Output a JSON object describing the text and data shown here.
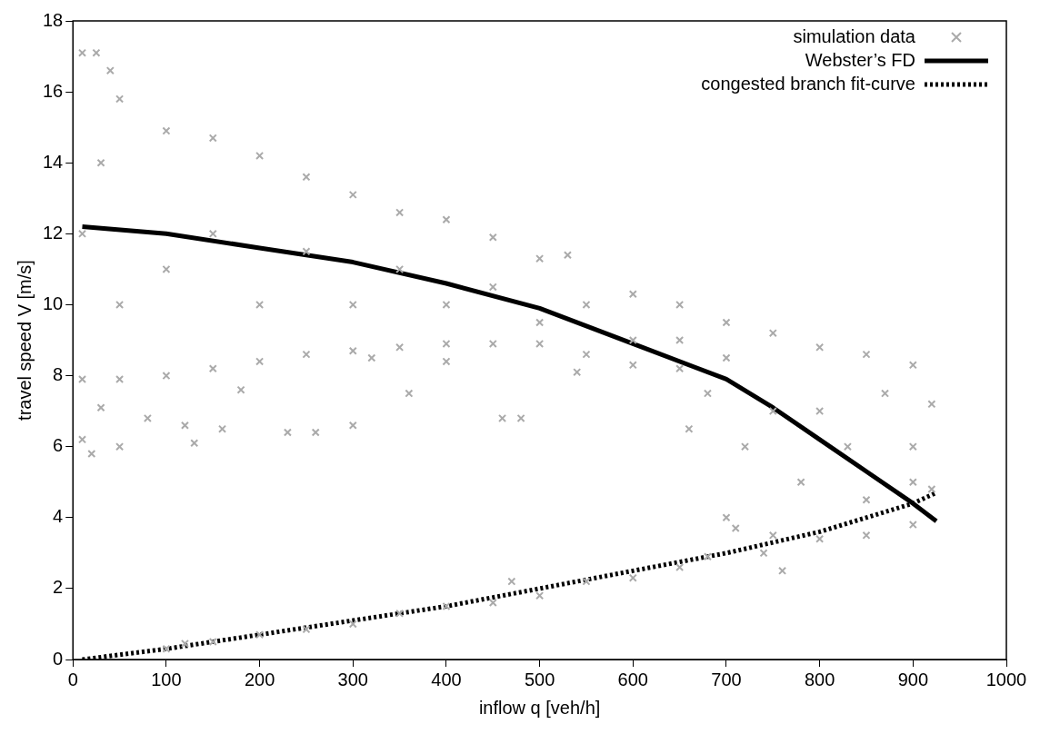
{
  "chart_data": {
    "type": "scatter",
    "xlabel": "inflow q [veh/h]",
    "ylabel": "travel speed V [m/s]",
    "xlim": [
      0,
      1000
    ],
    "xticks": [
      0,
      100,
      200,
      300,
      400,
      500,
      600,
      700,
      800,
      900,
      1000
    ],
    "ylim": [
      0,
      18
    ],
    "yticks": [
      0,
      2,
      4,
      6,
      8,
      10,
      12,
      14,
      16,
      18
    ],
    "grid": false,
    "legend": "top right",
    "series": [
      {
        "name": "simulation data",
        "type": "scatter",
        "marker": "cross",
        "color": "#aaaaaa",
        "x": [
          10,
          25,
          40,
          50,
          100,
          150,
          200,
          250,
          300,
          350,
          400,
          450,
          500,
          530,
          600,
          650,
          700,
          750,
          800,
          850,
          900,
          920,
          10,
          50,
          100,
          150,
          200,
          250,
          300,
          350,
          400,
          450,
          500,
          550,
          600,
          650,
          680,
          700,
          750,
          800,
          850,
          900,
          920,
          10,
          20,
          30,
          50,
          80,
          120,
          130,
          160,
          180,
          230,
          260,
          300,
          320,
          360,
          400,
          460,
          480,
          540,
          660,
          710,
          760,
          740,
          10,
          30,
          50,
          100,
          150,
          200,
          250,
          300,
          350,
          400,
          450,
          500,
          550,
          600,
          650,
          700,
          720,
          750,
          780,
          800,
          830,
          850,
          870,
          900,
          900,
          100,
          120,
          150,
          200,
          250,
          300,
          350,
          400,
          450,
          470,
          500,
          550,
          600,
          650,
          680
        ],
        "values": [
          17.1,
          17.1,
          16.6,
          15.8,
          14.9,
          14.7,
          14.2,
          13.6,
          13.1,
          12.6,
          12.4,
          11.9,
          11.3,
          11.4,
          10.3,
          10.0,
          9.5,
          9.2,
          8.8,
          8.6,
          8.3,
          7.2,
          7.9,
          7.9,
          8.0,
          8.2,
          8.4,
          8.6,
          8.7,
          8.8,
          8.9,
          8.9,
          8.9,
          8.6,
          8.3,
          8.2,
          7.5,
          4.0,
          3.5,
          3.4,
          3.5,
          3.8,
          4.8,
          6.2,
          5.8,
          7.1,
          6.0,
          6.8,
          6.6,
          6.1,
          6.5,
          7.6,
          6.4,
          6.4,
          6.6,
          8.5,
          7.5,
          8.4,
          6.8,
          6.8,
          8.1,
          6.5,
          3.7,
          2.5,
          3.0,
          12,
          14,
          10,
          11,
          12,
          10,
          11.5,
          10,
          11,
          10,
          10.5,
          9.5,
          10,
          9,
          9,
          8.5,
          6,
          7,
          5,
          7,
          6,
          4.5,
          7.5,
          6,
          5,
          0.3,
          0.45,
          0.5,
          0.7,
          0.85,
          1.0,
          1.3,
          1.5,
          1.6,
          2.2,
          1.8,
          2.2,
          2.3,
          2.6,
          2.9
        ]
      },
      {
        "name": "Webster’s FD",
        "type": "line",
        "marker": "none",
        "line_style": "solid",
        "color": "#000000",
        "x": [
          10,
          100,
          200,
          300,
          400,
          500,
          600,
          700,
          750,
          800,
          850,
          900,
          925
        ],
        "values": [
          12.2,
          12.0,
          11.6,
          11.2,
          10.6,
          9.9,
          8.9,
          7.9,
          7.1,
          6.2,
          5.3,
          4.4,
          3.9
        ]
      },
      {
        "name": "congested branch fit-curve",
        "type": "line",
        "marker": "none",
        "line_style": "dotted",
        "color": "#000000",
        "x": [
          10,
          100,
          200,
          300,
          400,
          500,
          600,
          700,
          800,
          900,
          925
        ],
        "values": [
          0,
          0.3,
          0.7,
          1.1,
          1.5,
          2.0,
          2.5,
          3.0,
          3.6,
          4.4,
          4.7
        ]
      }
    ]
  }
}
